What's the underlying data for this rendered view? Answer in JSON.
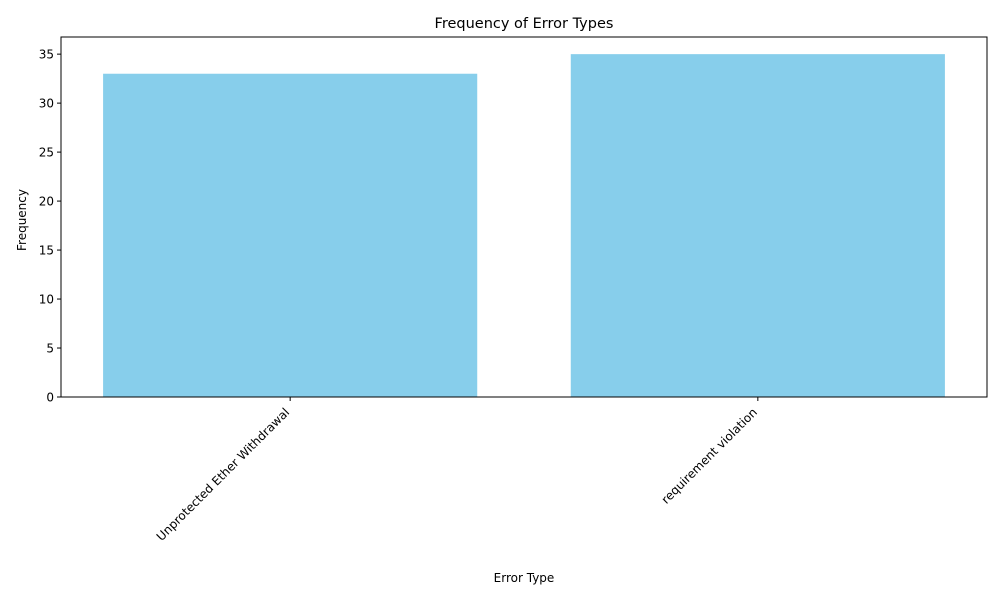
{
  "chart_data": {
    "type": "bar",
    "title": "Frequency of Error Types",
    "xlabel": "Error Type",
    "ylabel": "Frequency",
    "categories": [
      "Unprotected Ether Withdrawal",
      "requirement violation"
    ],
    "values": [
      33,
      35
    ],
    "ylim": [
      0,
      36.75
    ],
    "yticks": [
      0,
      5,
      10,
      15,
      20,
      25,
      30,
      35
    ],
    "bar_color": "#87ceeb",
    "grid": false,
    "legend": "none"
  }
}
